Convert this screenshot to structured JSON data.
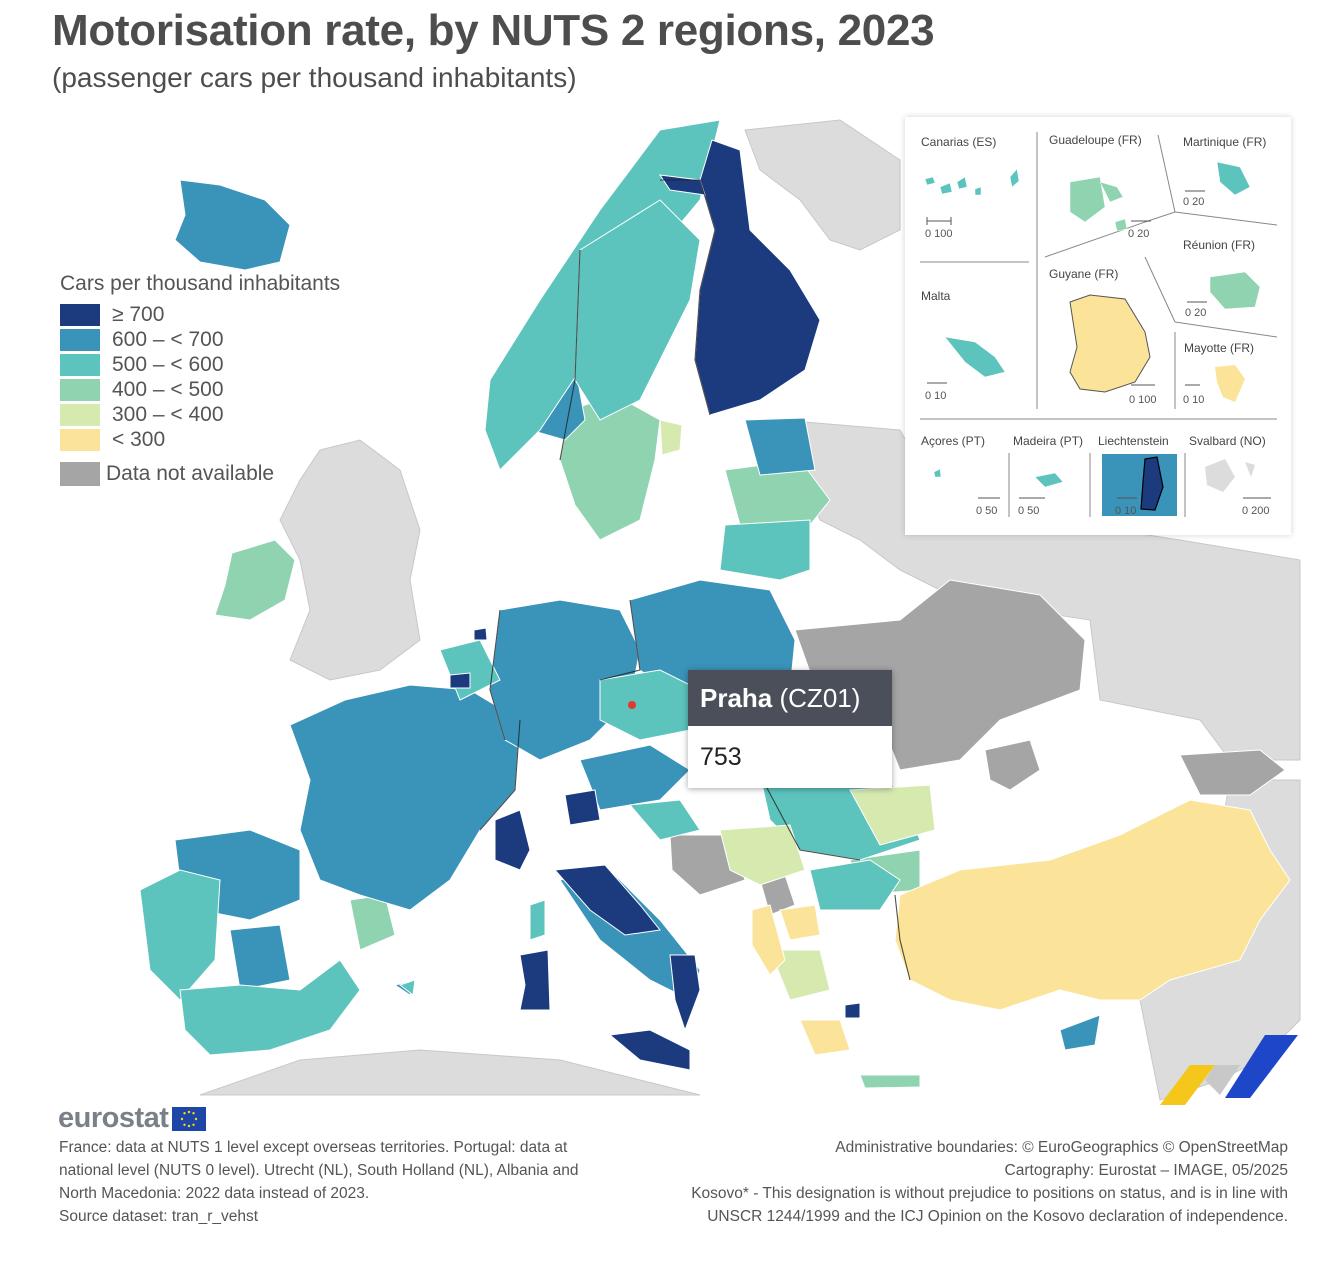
{
  "title": "Motorisation rate, by NUTS 2 regions, 2023",
  "subtitle": "(passenger cars per thousand inhabitants)",
  "legend": {
    "title": "Cars per thousand inhabitants",
    "items": [
      {
        "label": "≥ 700",
        "color": "#1c3a7e"
      },
      {
        "label": "600 – < 700",
        "color": "#3a93b8"
      },
      {
        "label": "500 – < 600",
        "color": "#5cc3bd"
      },
      {
        "label": "400 – < 500",
        "color": "#8fd3b0"
      },
      {
        "label": "300 – < 400",
        "color": "#d6eab0"
      },
      {
        "label": "< 300",
        "color": "#fbe49a"
      }
    ],
    "na_label": "Data not available",
    "na_color": "#a5a5a5"
  },
  "insets": {
    "canarias": "Canarias (ES)",
    "guadeloupe": "Guadeloupe (FR)",
    "martinique": "Martinique (FR)",
    "reunion": "Réunion (FR)",
    "guyane": "Guyane (FR)",
    "mayotte": "Mayotte (FR)",
    "malta": "Malta",
    "acores": "Açores (PT)",
    "madeira": "Madeira (PT)",
    "liechtenstein": "Liechtenstein",
    "svalbard": "Svalbard (NO)",
    "scales": {
      "canarias": "0  100",
      "guadeloupe": "0  20",
      "martinique": "0  20",
      "reunion": "0  20",
      "guyane": "0   100",
      "mayotte": "0 10",
      "malta": "0  10",
      "acores": "0  50",
      "madeira": "0    50",
      "liechtenstein": "0  10",
      "svalbard": "0    200"
    }
  },
  "tooltip": {
    "region": "Praha",
    "code": "(CZ01)",
    "value": "753"
  },
  "logo": "eurostat",
  "footnotes_left": [
    "France: data at NUTS 1 level except overseas territories. Portugal: data at",
    "national level (NUTS 0 level). Utrecht (NL), South Holland (NL), Albania and",
    "North Macedonia: 2022 data instead of 2023.",
    "Source dataset: tran_r_vehst"
  ],
  "footnotes_right": [
    "Administrative boundaries: © EuroGeographics © OpenStreetMap",
    "Cartography: Eurostat – IMAGE, 05/2025",
    "Kosovo* - This designation is without prejudice to positions on status, and is in line with",
    "UNSCR 1244/1999 and the ICJ Opinion on the Kosovo declaration of independence."
  ]
}
